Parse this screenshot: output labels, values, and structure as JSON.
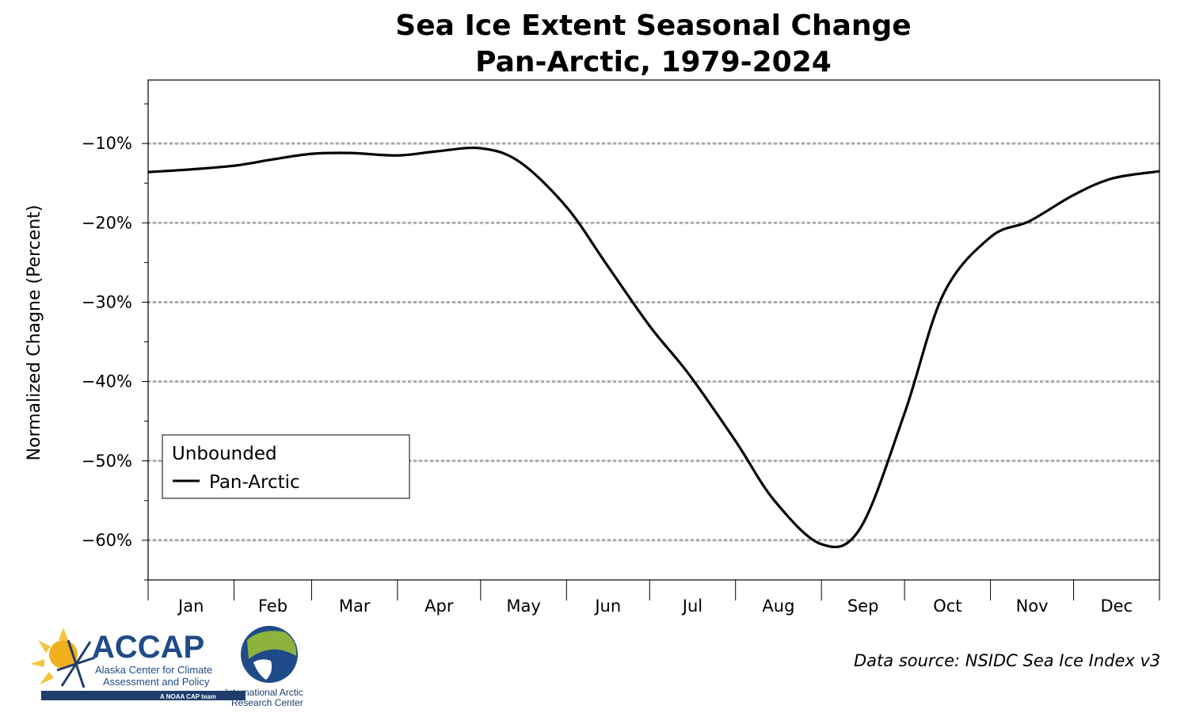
{
  "chart_data": {
    "type": "line",
    "title": "Sea Ice Extent Seasonal Change",
    "subtitle": "Pan-Arctic, 1979-2024",
    "ylabel": "Normalized Chagne (Percent)",
    "xlabel": "",
    "categories": [
      "Jan",
      "Feb",
      "Mar",
      "Apr",
      "May",
      "Jun",
      "Jul",
      "Aug",
      "Sep",
      "Oct",
      "Nov",
      "Dec"
    ],
    "ylim": [
      -65,
      -2
    ],
    "yticks": [
      -10,
      -20,
      -30,
      -40,
      -50,
      -60
    ],
    "ytick_labels": [
      "−10%",
      "−20%",
      "−30%",
      "−40%",
      "−50%",
      "−60%"
    ],
    "grid": "horizontal dotted",
    "legend": {
      "title": "Unbounded",
      "placement": "lower-left"
    },
    "series": [
      {
        "name": "Pan-Arctic",
        "color": "#000000",
        "x": [
          1,
          15,
          32,
          46,
          60,
          74,
          91,
          105,
          121,
          135,
          152,
          166,
          182,
          196,
          213,
          227,
          244,
          258,
          274,
          288,
          305,
          319,
          335,
          349,
          366
        ],
        "values": [
          -13.6,
          -13.3,
          -12.8,
          -12.0,
          -11.3,
          -11.2,
          -11.5,
          -11.0,
          -10.6,
          -12.3,
          -18.0,
          -25.0,
          -33.0,
          -39.0,
          -47.5,
          -55.0,
          -60.5,
          -58.5,
          -44.0,
          -29.0,
          -21.8,
          -19.8,
          -16.5,
          -14.4,
          -13.5
        ]
      }
    ]
  },
  "source": "Data source: NSIDC Sea Ice Index v3",
  "logos": {
    "accap_name": "ACCAP",
    "accap_sub1": "Alaska Center for Climate",
    "accap_sub2": "Assessment and Policy",
    "accap_tag": "A NOAA CAP team",
    "iarc_line1": "International Arctic",
    "iarc_line2": "Research Center"
  }
}
